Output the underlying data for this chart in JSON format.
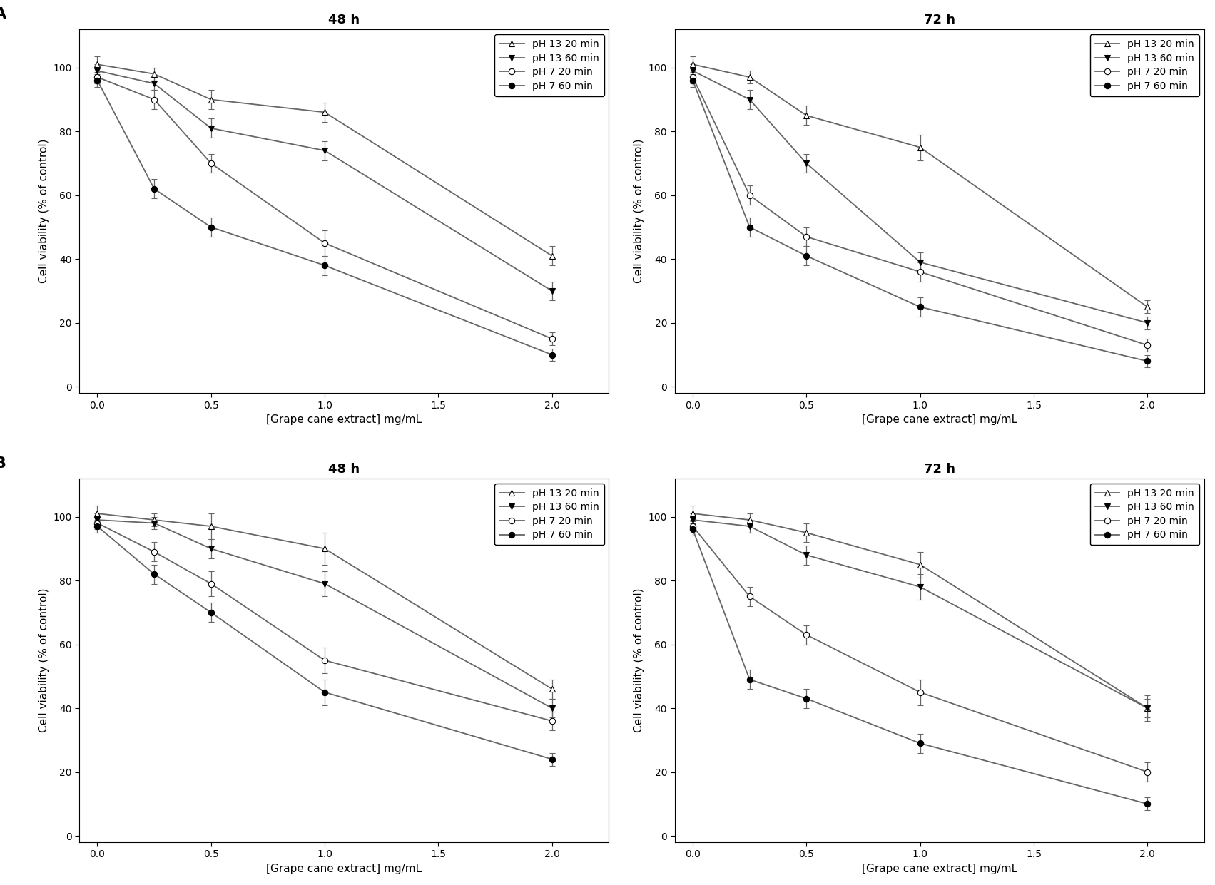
{
  "x": [
    0.0,
    0.25,
    0.5,
    1.0,
    2.0
  ],
  "panel_titles_col": [
    "48 h",
    "72 h"
  ],
  "panel_labels": [
    "A",
    "B"
  ],
  "xlabel": "[Grape cane extract] mg/mL",
  "ylabel": "Cell viability (% of control)",
  "legend_labels": [
    "pH 13 20 min",
    "pH 13 60 min",
    "pH 7 20 min",
    "pH 7 60 min"
  ],
  "ylim": [
    -2,
    112
  ],
  "yticks": [
    0,
    20,
    40,
    60,
    80,
    100
  ],
  "xticks": [
    0.0,
    0.5,
    1.0,
    1.5,
    2.0
  ],
  "A_48h": {
    "pH13_20min": {
      "y": [
        101,
        98,
        90,
        86,
        41
      ],
      "err": [
        2.5,
        2,
        3,
        3,
        3
      ]
    },
    "pH13_60min": {
      "y": [
        99,
        95,
        81,
        74,
        30
      ],
      "err": [
        2,
        2,
        3,
        3,
        3
      ]
    },
    "pH7_20min": {
      "y": [
        97,
        90,
        70,
        45,
        15
      ],
      "err": [
        2,
        3,
        3,
        4,
        2
      ]
    },
    "pH7_60min": {
      "y": [
        96,
        62,
        50,
        38,
        10
      ],
      "err": [
        2,
        3,
        3,
        3,
        2
      ]
    }
  },
  "A_72h": {
    "pH13_20min": {
      "y": [
        101,
        97,
        85,
        75,
        25
      ],
      "err": [
        2.5,
        2,
        3,
        4,
        2
      ]
    },
    "pH13_60min": {
      "y": [
        99,
        90,
        70,
        39,
        20
      ],
      "err": [
        2,
        3,
        3,
        3,
        2
      ]
    },
    "pH7_20min": {
      "y": [
        97,
        60,
        47,
        36,
        13
      ],
      "err": [
        2,
        3,
        3,
        3,
        2
      ]
    },
    "pH7_60min": {
      "y": [
        96,
        50,
        41,
        25,
        8
      ],
      "err": [
        2,
        3,
        3,
        3,
        2
      ]
    }
  },
  "B_48h": {
    "pH13_20min": {
      "y": [
        101,
        99,
        97,
        90,
        46
      ],
      "err": [
        2.5,
        2,
        4,
        5,
        3
      ]
    },
    "pH13_60min": {
      "y": [
        99,
        98,
        90,
        79,
        40
      ],
      "err": [
        2,
        2,
        3,
        4,
        3
      ]
    },
    "pH7_20min": {
      "y": [
        98,
        89,
        79,
        55,
        36
      ],
      "err": [
        2,
        3,
        4,
        4,
        3
      ]
    },
    "pH7_60min": {
      "y": [
        97,
        82,
        70,
        45,
        24
      ],
      "err": [
        2,
        3,
        3,
        4,
        2
      ]
    }
  },
  "B_72h": {
    "pH13_20min": {
      "y": [
        101,
        99,
        95,
        85,
        40
      ],
      "err": [
        2.5,
        2,
        3,
        4,
        4
      ]
    },
    "pH13_60min": {
      "y": [
        99,
        97,
        88,
        78,
        40
      ],
      "err": [
        2,
        2,
        3,
        4,
        3
      ]
    },
    "pH7_20min": {
      "y": [
        97,
        75,
        63,
        45,
        20
      ],
      "err": [
        2,
        3,
        3,
        4,
        3
      ]
    },
    "pH7_60min": {
      "y": [
        96,
        49,
        43,
        29,
        10
      ],
      "err": [
        2,
        3,
        3,
        3,
        2
      ]
    }
  },
  "line_color": "#666666",
  "background_color": "#ffffff",
  "title_fontsize": 13,
  "label_fontsize": 11,
  "tick_fontsize": 10,
  "legend_fontsize": 10,
  "panel_label_fontsize": 16
}
